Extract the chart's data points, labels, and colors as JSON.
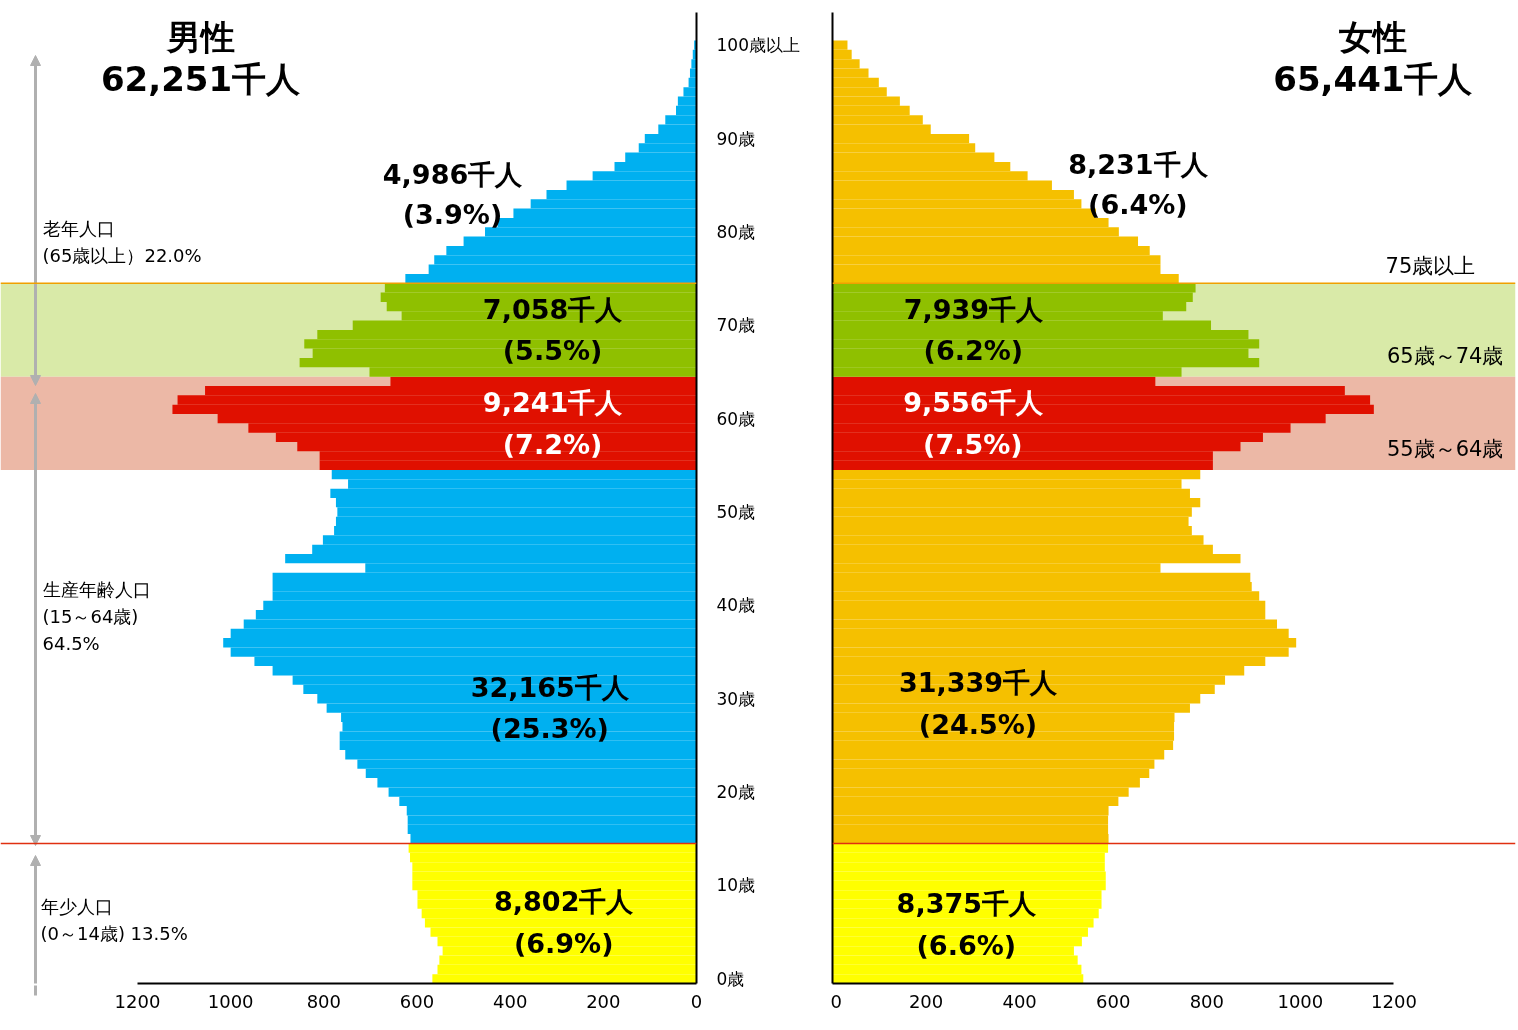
{
  "chart_data": [
    {
      "type": "bar",
      "orientation": "horizontal",
      "title": "男性",
      "subtitle": "62,251千人",
      "x": [
        0,
        1,
        2,
        3,
        4,
        5,
        6,
        7,
        8,
        9,
        10,
        11,
        12,
        13,
        14,
        15,
        16,
        17,
        18,
        19,
        20,
        21,
        22,
        23,
        24,
        25,
        26,
        27,
        28,
        29,
        30,
        31,
        32,
        33,
        34,
        35,
        36,
        37,
        38,
        39,
        40,
        41,
        42,
        43,
        44,
        45,
        46,
        47,
        48,
        49,
        50,
        51,
        52,
        53,
        54,
        55,
        56,
        57,
        58,
        59,
        60,
        61,
        62,
        63,
        64,
        65,
        66,
        67,
        68,
        69,
        70,
        71,
        72,
        73,
        74,
        75,
        76,
        77,
        78,
        79,
        80,
        81,
        82,
        83,
        84,
        85,
        86,
        87,
        88,
        89,
        90,
        91,
        92,
        93,
        94,
        95,
        96,
        97,
        98,
        99,
        100
      ],
      "values": [
        567,
        556,
        552,
        545,
        556,
        571,
        583,
        590,
        599,
        599,
        610,
        610,
        610,
        615,
        618,
        614,
        620,
        620,
        622,
        638,
        661,
        685,
        710,
        728,
        754,
        766,
        766,
        760,
        763,
        794,
        814,
        844,
        867,
        910,
        949,
        1000,
        1016,
        1000,
        972,
        946,
        930,
        910,
        910,
        910,
        711,
        883,
        825,
        802,
        778,
        774,
        771,
        774,
        786,
        748,
        783,
        809,
        809,
        857,
        903,
        962,
        1028,
        1125,
        1114,
        1055,
        657,
        702,
        852,
        824,
        842,
        814,
        738,
        633,
        665,
        678,
        669,
        625,
        575,
        563,
        537,
        500,
        454,
        427,
        393,
        356,
        322,
        279,
        223,
        176,
        153,
        124,
        111,
        82,
        67,
        44,
        40,
        28,
        17,
        14,
        11,
        8,
        5
      ],
      "colors": [
        "#ffff00",
        "#ffff00",
        "#ffff00",
        "#ffff00",
        "#ffff00",
        "#ffff00",
        "#ffff00",
        "#ffff00",
        "#ffff00",
        "#ffff00",
        "#ffff00",
        "#ffff00",
        "#ffff00",
        "#ffff00",
        "#ffff00",
        "#00b0f0",
        "#00b0f0",
        "#00b0f0",
        "#00b0f0",
        "#00b0f0",
        "#00b0f0",
        "#00b0f0",
        "#00b0f0",
        "#00b0f0",
        "#00b0f0",
        "#00b0f0",
        "#00b0f0",
        "#00b0f0",
        "#00b0f0",
        "#00b0f0",
        "#00b0f0",
        "#00b0f0",
        "#00b0f0",
        "#00b0f0",
        "#00b0f0",
        "#00b0f0",
        "#00b0f0",
        "#00b0f0",
        "#00b0f0",
        "#00b0f0",
        "#00b0f0",
        "#00b0f0",
        "#00b0f0",
        "#00b0f0",
        "#00b0f0",
        "#00b0f0",
        "#00b0f0",
        "#00b0f0",
        "#00b0f0",
        "#00b0f0",
        "#00b0f0",
        "#00b0f0",
        "#00b0f0",
        "#00b0f0",
        "#00b0f0",
        "#e01000",
        "#e01000",
        "#e01000",
        "#e01000",
        "#e01000",
        "#e01000",
        "#e01000",
        "#e01000",
        "#e01000",
        "#e01000",
        "#8fc000",
        "#8fc000",
        "#8fc000",
        "#8fc000",
        "#8fc000",
        "#8fc000",
        "#8fc000",
        "#8fc000",
        "#8fc000",
        "#8fc000",
        "#00b0f0",
        "#00b0f0",
        "#00b0f0",
        "#00b0f0",
        "#00b0f0",
        "#00b0f0",
        "#00b0f0",
        "#00b0f0",
        "#00b0f0",
        "#00b0f0",
        "#00b0f0",
        "#00b0f0",
        "#00b0f0",
        "#00b0f0",
        "#00b0f0",
        "#00b0f0",
        "#00b0f0",
        "#00b0f0",
        "#00b0f0",
        "#00b0f0",
        "#00b0f0",
        "#00b0f0",
        "#00b0f0",
        "#00b0f0",
        "#00b0f0",
        "#00b0f0"
      ],
      "xlim": [
        1200,
        0
      ],
      "xticks": [
        1200,
        1000,
        800,
        600,
        400,
        200,
        0
      ],
      "ylim": [
        -0.5,
        103.5
      ],
      "yticks": [
        {
          "value": 0,
          "label": "0歳"
        },
        {
          "value": 10,
          "label": "10歳"
        },
        {
          "value": 20,
          "label": "20歳"
        },
        {
          "value": 30,
          "label": "30歳"
        },
        {
          "value": 40,
          "label": "40歳"
        },
        {
          "value": 50,
          "label": "50歳"
        },
        {
          "value": 60,
          "label": "60歳"
        },
        {
          "value": 70,
          "label": "70歳"
        },
        {
          "value": 80,
          "label": "80歳"
        },
        {
          "value": 90,
          "label": "90歳"
        },
        {
          "value": 100,
          "label": "100歳以上"
        }
      ],
      "bands": [
        {
          "axis": "y",
          "from": 64.5,
          "to": 74.5,
          "color": "#d9eaa8"
        },
        {
          "axis": "y",
          "from": 54.5,
          "to": 64.5,
          "color": "#ecb8a6"
        }
      ],
      "ref_lines": [
        {
          "axis": "y",
          "value": 74.5,
          "color": "#f0a000"
        },
        {
          "axis": "y",
          "value": 14.5,
          "color": "#e03010"
        }
      ],
      "annotations": [
        "4,986千人\n(3.9%)",
        {
          "text": "7,058千人\n(5.5%)",
          "x": 309,
          "y": 69.5
        },
        {
          "text": "9,241千人\n(7.2%)",
          "x": 309,
          "y": 59.5
        },
        {
          "text": "32,165千人\n(25.3%)",
          "x": 315,
          "y": 29
        },
        {
          "text": "8,802千人\n(6.9%)",
          "x": 285,
          "y": 6
        },
        "老年人口\n(65歳以上）22.0%",
        "生産年齢人口\n(15～64歳)\n64.5%",
        "年少人口\n(0～14歳) 13.5%"
      ]
    },
    {
      "type": "bar",
      "orientation": "horizontal",
      "title": "女性",
      "subtitle": "65,441千人",
      "tick_labels": "x",
      "x": [
        0,
        1,
        2,
        3,
        4,
        5,
        6,
        7,
        8,
        9,
        10,
        11,
        12,
        13,
        14,
        15,
        16,
        17,
        18,
        19,
        20,
        21,
        22,
        23,
        24,
        25,
        26,
        27,
        28,
        29,
        30,
        31,
        32,
        33,
        34,
        35,
        36,
        37,
        38,
        39,
        40,
        41,
        42,
        43,
        44,
        45,
        46,
        47,
        48,
        49,
        50,
        51,
        52,
        53,
        54,
        55,
        56,
        57,
        58,
        59,
        60,
        61,
        62,
        63,
        64,
        65,
        66,
        67,
        68,
        69,
        70,
        71,
        72,
        73,
        74,
        75,
        76,
        77,
        78,
        79,
        80,
        81,
        82,
        83,
        84,
        85,
        86,
        87,
        88,
        89,
        90,
        91,
        92,
        93,
        94,
        95,
        96,
        97,
        98,
        99,
        100
      ],
      "values": [
        536,
        532,
        524,
        516,
        533,
        546,
        558,
        569,
        575,
        575,
        584,
        584,
        582,
        582,
        589,
        590,
        589,
        589,
        590,
        611,
        633,
        657,
        677,
        688,
        709,
        728,
        730,
        730,
        731,
        764,
        786,
        817,
        839,
        880,
        925,
        975,
        991,
        975,
        950,
        925,
        925,
        912,
        896,
        893,
        701,
        872,
        813,
        793,
        768,
        761,
        768,
        786,
        764,
        746,
        786,
        813,
        813,
        872,
        920,
        979,
        1054,
        1157,
        1149,
        1095,
        690,
        746,
        912,
        889,
        912,
        889,
        809,
        706,
        756,
        770,
        776,
        740,
        701,
        701,
        678,
        653,
        612,
        590,
        563,
        532,
        516,
        469,
        417,
        380,
        346,
        305,
        292,
        210,
        193,
        165,
        144,
        116,
        99,
        77,
        58,
        41,
        32
      ],
      "colors": [
        "#ffff00",
        "#ffff00",
        "#ffff00",
        "#ffff00",
        "#ffff00",
        "#ffff00",
        "#ffff00",
        "#ffff00",
        "#ffff00",
        "#ffff00",
        "#ffff00",
        "#ffff00",
        "#ffff00",
        "#ffff00",
        "#ffff00",
        "#f5c000",
        "#f5c000",
        "#f5c000",
        "#f5c000",
        "#f5c000",
        "#f5c000",
        "#f5c000",
        "#f5c000",
        "#f5c000",
        "#f5c000",
        "#f5c000",
        "#f5c000",
        "#f5c000",
        "#f5c000",
        "#f5c000",
        "#f5c000",
        "#f5c000",
        "#f5c000",
        "#f5c000",
        "#f5c000",
        "#f5c000",
        "#f5c000",
        "#f5c000",
        "#f5c000",
        "#f5c000",
        "#f5c000",
        "#f5c000",
        "#f5c000",
        "#f5c000",
        "#f5c000",
        "#f5c000",
        "#f5c000",
        "#f5c000",
        "#f5c000",
        "#f5c000",
        "#f5c000",
        "#f5c000",
        "#f5c000",
        "#f5c000",
        "#f5c000",
        "#e01000",
        "#e01000",
        "#e01000",
        "#e01000",
        "#e01000",
        "#e01000",
        "#e01000",
        "#e01000",
        "#e01000",
        "#e01000",
        "#8fc000",
        "#8fc000",
        "#8fc000",
        "#8fc000",
        "#8fc000",
        "#8fc000",
        "#8fc000",
        "#8fc000",
        "#8fc000",
        "#8fc000",
        "#f5c000",
        "#f5c000",
        "#f5c000",
        "#f5c000",
        "#f5c000",
        "#f5c000",
        "#f5c000",
        "#f5c000",
        "#f5c000",
        "#f5c000",
        "#f5c000",
        "#f5c000",
        "#f5c000",
        "#f5c000",
        "#f5c000",
        "#f5c000",
        "#f5c000",
        "#f5c000",
        "#f5c000",
        "#f5c000",
        "#f5c000",
        "#f5c000",
        "#f5c000",
        "#f5c000",
        "#f5c000",
        "#f5c000"
      ],
      "xlim": [
        0,
        1200
      ],
      "xticks": [
        0,
        200,
        400,
        600,
        800,
        1000,
        1200
      ],
      "ylim": [
        -0.5,
        103.5
      ],
      "bands": [
        {
          "axis": "y",
          "from": 64.5,
          "to": 74.5,
          "color": "#d9eaa8",
          "label": "65歳～74歳"
        },
        {
          "axis": "y",
          "from": 54.5,
          "to": 64.5,
          "color": "#ecb8a6",
          "label": "55歳～64歳"
        }
      ],
      "ref_lines": [
        {
          "axis": "y",
          "value": 74.5,
          "color": "#f0a000",
          "label": "75歳以上"
        },
        {
          "axis": "y",
          "value": 14.5,
          "color": "#e03010"
        }
      ],
      "annotations": [
        "8,231千人\n(6.4%)",
        {
          "text": "7,939千人\n(6.2%)",
          "x": 301,
          "y": 69.5
        },
        {
          "text": "9,556千人\n(7.5%)",
          "x": 300,
          "y": 59.5
        },
        {
          "text": "31,339千人\n(24.5%)",
          "x": 311,
          "y": 29.5
        },
        {
          "text": "8,375千人\n(6.6%)",
          "x": 286,
          "y": 5.8
        }
      ]
    }
  ]
}
